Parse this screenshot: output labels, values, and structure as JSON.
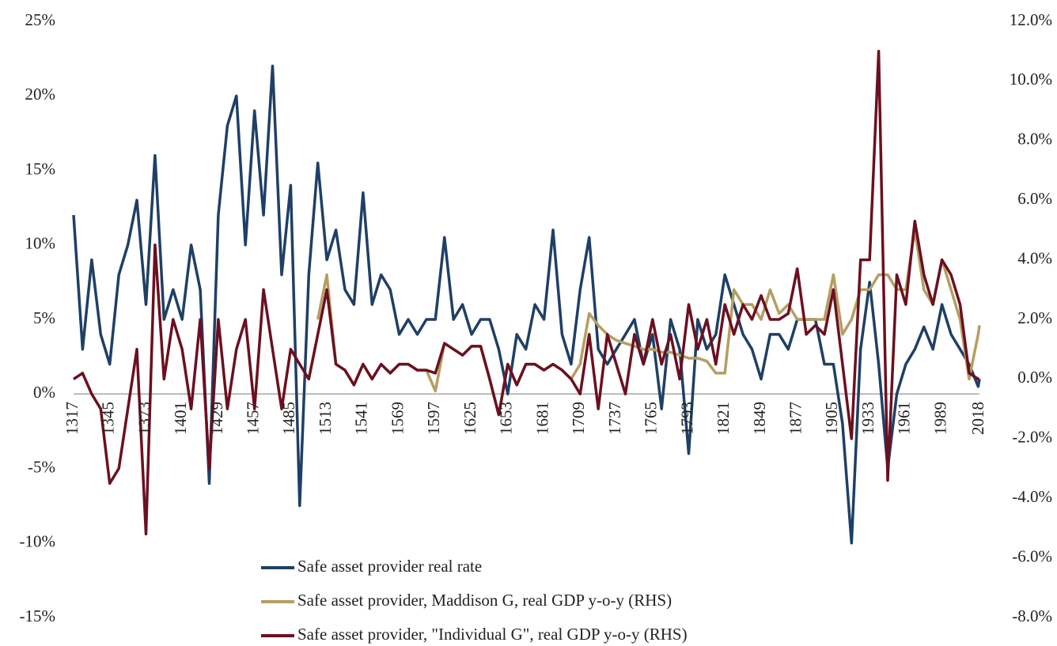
{
  "chart_data": {
    "type": "line",
    "x": [
      1317,
      1324,
      1331,
      1338,
      1345,
      1352,
      1359,
      1366,
      1373,
      1380,
      1387,
      1394,
      1401,
      1408,
      1415,
      1422,
      1429,
      1436,
      1443,
      1450,
      1457,
      1464,
      1471,
      1478,
      1485,
      1492,
      1499,
      1506,
      1513,
      1520,
      1527,
      1534,
      1541,
      1548,
      1555,
      1562,
      1569,
      1576,
      1583,
      1590,
      1597,
      1604,
      1611,
      1618,
      1625,
      1632,
      1639,
      1646,
      1653,
      1660,
      1667,
      1674,
      1681,
      1688,
      1695,
      1702,
      1709,
      1716,
      1723,
      1730,
      1737,
      1744,
      1751,
      1758,
      1765,
      1772,
      1779,
      1786,
      1793,
      1800,
      1807,
      1814,
      1821,
      1828,
      1835,
      1842,
      1849,
      1856,
      1863,
      1870,
      1877,
      1884,
      1891,
      1898,
      1905,
      1912,
      1919,
      1926,
      1933,
      1940,
      1947,
      1954,
      1961,
      1968,
      1975,
      1982,
      1989,
      1996,
      2003,
      2010,
      2017,
      2018
    ],
    "series": [
      {
        "name": "Safe asset provider real rate",
        "color": "#1f3f66",
        "axis": "y",
        "values": [
          12,
          3,
          9,
          4,
          2,
          8,
          10,
          13,
          6,
          16,
          5,
          7,
          5,
          10,
          7,
          -6,
          12,
          18,
          20,
          10,
          19,
          12,
          22,
          8,
          14,
          -7.5,
          8,
          15.5,
          9,
          11,
          7,
          6,
          13.5,
          6,
          8,
          7,
          4,
          5,
          4,
          5,
          5,
          10.5,
          5,
          6,
          4,
          5,
          5,
          3,
          0,
          4,
          3,
          6,
          5,
          11,
          4,
          2,
          7,
          10.5,
          3,
          2,
          3,
          4,
          5,
          2,
          4,
          -1,
          5,
          3,
          -4,
          5,
          3,
          4,
          8,
          6,
          4,
          3,
          1,
          4,
          4,
          3,
          5,
          5,
          5,
          2,
          2,
          -2,
          -10,
          3,
          7.5,
          2,
          -5,
          0,
          2,
          3,
          4.5,
          3,
          6,
          4,
          3,
          2,
          0.5,
          1
        ]
      },
      {
        "name": "Safe asset provider, Maddison G, real GDP y-o-y (RHS)",
        "color": "#b59e62",
        "axis": "y2",
        "values": [
          null,
          null,
          null,
          null,
          null,
          null,
          null,
          null,
          null,
          null,
          null,
          null,
          null,
          null,
          null,
          null,
          null,
          null,
          null,
          null,
          null,
          null,
          null,
          null,
          null,
          null,
          null,
          2,
          3.5,
          0.5,
          0.3,
          -0.2,
          0.5,
          0,
          0.5,
          0.2,
          0.5,
          0.5,
          0.3,
          0.3,
          -0.4,
          1.2,
          1,
          0.8,
          1.1,
          1.1,
          0,
          -1.2,
          0.5,
          -0.2,
          0.5,
          0.5,
          0.3,
          0.5,
          0.3,
          0,
          0.5,
          2.2,
          1.8,
          1.5,
          1.3,
          1.2,
          1.1,
          1,
          1,
          0.9,
          0.9,
          0.8,
          0.7,
          0.7,
          0.6,
          0.2,
          0.2,
          3,
          2.5,
          2.5,
          2,
          3,
          2.2,
          2.5,
          2,
          2,
          2,
          2,
          3.5,
          1.5,
          2,
          3,
          3,
          3.5,
          3.5,
          3,
          3,
          5,
          3,
          2.5,
          4,
          3,
          2,
          0,
          1.5,
          1.8
        ]
      },
      {
        "name": "Safe asset provider, \"Individual G\", real GDP  y-o-y (RHS)",
        "color": "#6b1020",
        "axis": "y2",
        "values": [
          0,
          0.2,
          -0.5,
          -1,
          -3.5,
          -3,
          -1,
          1,
          -5.2,
          4.5,
          0,
          2,
          1,
          -1,
          2,
          -3,
          2,
          -1,
          1,
          2,
          -1,
          3,
          1,
          -1,
          1,
          0.5,
          0,
          1.5,
          3,
          0.5,
          0.3,
          -0.2,
          0.5,
          0,
          0.5,
          0.2,
          0.5,
          0.5,
          0.3,
          0.3,
          0.2,
          1.2,
          1,
          0.8,
          1.1,
          1.1,
          0,
          -1.2,
          0.5,
          -0.2,
          0.5,
          0.5,
          0.3,
          0.5,
          0.3,
          0,
          -0.5,
          1.5,
          -1,
          1.5,
          0.5,
          -0.5,
          1.5,
          0.5,
          2,
          0.5,
          1.5,
          0,
          2.5,
          1,
          2,
          0.5,
          2.5,
          1.5,
          2.5,
          2,
          2.8,
          2,
          2,
          2.2,
          3.7,
          1.5,
          1.8,
          1.5,
          3,
          0.5,
          -2,
          4,
          4,
          11,
          -3.4,
          3.5,
          2.5,
          5.3,
          3.5,
          2.5,
          4,
          3.5,
          2.5,
          0.2,
          0,
          0
        ]
      }
    ],
    "xlim": [
      1317,
      2018
    ],
    "xticks": [
      1317,
      1345,
      1373,
      1401,
      1429,
      1457,
      1485,
      1513,
      1541,
      1569,
      1597,
      1625,
      1653,
      1681,
      1709,
      1737,
      1765,
      1793,
      1821,
      1849,
      1877,
      1905,
      1933,
      1961,
      1989,
      2018
    ],
    "ylim": [
      -15,
      25
    ],
    "yticks": [
      {
        "value": -15,
        "label": "-15%"
      },
      {
        "value": -10,
        "label": "-10%"
      },
      {
        "value": -5,
        "label": "-5%"
      },
      {
        "value": 0,
        "label": "0%"
      },
      {
        "value": 5,
        "label": "5%"
      },
      {
        "value": 10,
        "label": "10%"
      },
      {
        "value": 15,
        "label": "15%"
      },
      {
        "value": 20,
        "label": "20%"
      },
      {
        "value": 25,
        "label": "25%"
      }
    ],
    "y2lim": [
      -8,
      12
    ],
    "y2ticks": [
      {
        "value": -8,
        "label": "-8.0%"
      },
      {
        "value": -6,
        "label": "-6.0%"
      },
      {
        "value": -4,
        "label": "-4.0%"
      },
      {
        "value": -2,
        "label": "-2.0%"
      },
      {
        "value": 0,
        "label": "0.0%"
      },
      {
        "value": 2,
        "label": "2.0%"
      },
      {
        "value": 4,
        "label": "4.0%"
      },
      {
        "value": 6,
        "label": "6.0%"
      },
      {
        "value": 8,
        "label": "8.0%"
      },
      {
        "value": 10,
        "label": "10.0%"
      },
      {
        "value": 12,
        "label": "12.0%"
      }
    ],
    "zero_line_color": "#a6a6a6"
  }
}
